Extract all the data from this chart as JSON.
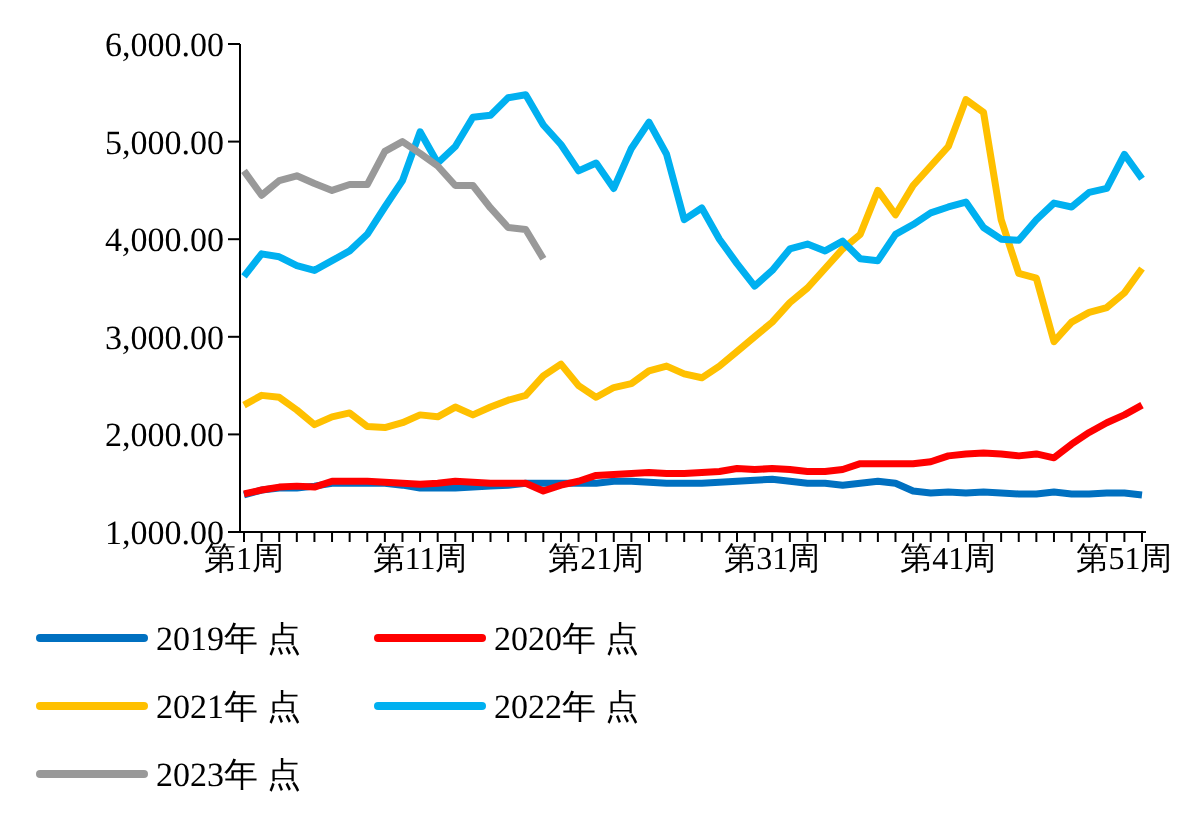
{
  "chart_data": {
    "type": "line",
    "categories": [
      "第1周",
      null,
      null,
      null,
      null,
      null,
      null,
      null,
      null,
      null,
      "第11周",
      null,
      null,
      null,
      null,
      null,
      null,
      null,
      null,
      null,
      "第21周",
      null,
      null,
      null,
      null,
      null,
      null,
      null,
      null,
      null,
      "第31周",
      null,
      null,
      null,
      null,
      null,
      null,
      null,
      null,
      null,
      "第41周",
      null,
      null,
      null,
      null,
      null,
      null,
      null,
      null,
      null,
      "第51周",
      null
    ],
    "series": [
      {
        "name": "2019年 点",
        "color": "#0070c0",
        "values": [
          1380,
          1430,
          1450,
          1450,
          1470,
          1500,
          1500,
          1500,
          1500,
          1480,
          1450,
          1450,
          1450,
          1460,
          1470,
          1480,
          1500,
          1500,
          1500,
          1500,
          1500,
          1520,
          1520,
          1510,
          1500,
          1500,
          1500,
          1510,
          1520,
          1530,
          1540,
          1520,
          1500,
          1500,
          1480,
          1500,
          1520,
          1500,
          1420,
          1400,
          1410,
          1400,
          1410,
          1400,
          1390,
          1390,
          1410,
          1390,
          1390,
          1400,
          1400,
          1380
        ]
      },
      {
        "name": "2020年 点",
        "color": "#ff0000",
        "values": [
          1390,
          1430,
          1460,
          1470,
          1460,
          1520,
          1520,
          1520,
          1510,
          1500,
          1490,
          1500,
          1520,
          1510,
          1500,
          1500,
          1500,
          1420,
          1480,
          1520,
          1580,
          1590,
          1600,
          1610,
          1600,
          1600,
          1610,
          1620,
          1650,
          1640,
          1650,
          1640,
          1620,
          1620,
          1640,
          1700,
          1700,
          1700,
          1700,
          1720,
          1780,
          1800,
          1810,
          1800,
          1780,
          1800,
          1760,
          1900,
          2020,
          2120,
          2200,
          2300
        ]
      },
      {
        "name": "2021年 点",
        "color": "#ffc000",
        "values": [
          2300,
          2400,
          2380,
          2250,
          2100,
          2180,
          2220,
          2080,
          2070,
          2120,
          2200,
          2180,
          2280,
          2200,
          2280,
          2350,
          2400,
          2600,
          2720,
          2500,
          2380,
          2480,
          2520,
          2650,
          2700,
          2620,
          2580,
          2700,
          2850,
          3000,
          3150,
          3350,
          3500,
          3700,
          3900,
          4050,
          4500,
          4250,
          4550,
          4750,
          4950,
          5430,
          5300,
          4200,
          3650,
          3600,
          2950,
          3150,
          3250,
          3300,
          3450,
          3700
        ]
      },
      {
        "name": "2022年 点",
        "color": "#00b0f0",
        "values": [
          3620,
          3850,
          3820,
          3730,
          3680,
          3780,
          3880,
          4050,
          4330,
          4600,
          5100,
          4780,
          4950,
          5250,
          5270,
          5450,
          5480,
          5170,
          4970,
          4700,
          4780,
          4520,
          4930,
          5200,
          4870,
          4200,
          4320,
          4000,
          3750,
          3520,
          3680,
          3900,
          3950,
          3880,
          3980,
          3800,
          3780,
          4050,
          4150,
          4270,
          4330,
          4380,
          4120,
          4000,
          3990,
          4200,
          4370,
          4330,
          4480,
          4520,
          4870,
          4620
        ]
      },
      {
        "name": "2023年 点",
        "color": "#999999",
        "values": [
          4700,
          4450,
          4600,
          4650,
          4570,
          4500,
          4560,
          4560,
          4900,
          5000,
          4880,
          4750,
          4550,
          4550,
          4320,
          4120,
          4100,
          3800,
          null,
          null,
          null,
          null,
          null,
          null,
          null,
          null,
          null,
          null,
          null,
          null,
          null,
          null,
          null,
          null,
          null,
          null,
          null,
          null,
          null,
          null,
          null,
          null,
          null,
          null,
          null,
          null,
          null,
          null,
          null,
          null,
          null,
          null
        ]
      }
    ],
    "ylim": [
      1000,
      6000
    ],
    "yticks": [
      {
        "value": 1000,
        "label": "1,000.00"
      },
      {
        "value": 2000,
        "label": "2,000.00"
      },
      {
        "value": 3000,
        "label": "3,000.00"
      },
      {
        "value": 4000,
        "label": "4,000.00"
      },
      {
        "value": 5000,
        "label": "5,000.00"
      },
      {
        "value": 6000,
        "label": "6,000.00"
      }
    ],
    "grid": false,
    "legend": "bottom",
    "marker": "none",
    "line_style": "solid"
  }
}
